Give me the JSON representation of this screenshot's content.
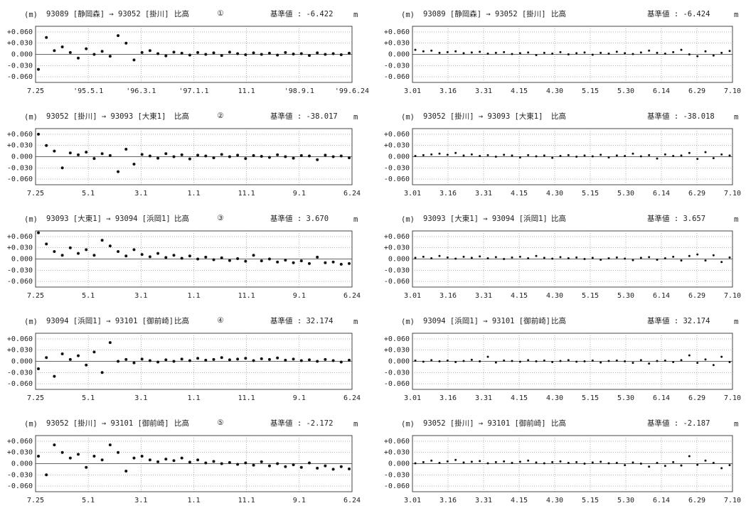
{
  "chart_data": [
    {
      "type": "scatter",
      "title": "93089 [静岡森] → 93052 [掛川]",
      "subtitle": "比高",
      "label": "①",
      "reference": "基準値 : -6.422",
      "y_unit": "(m)",
      "y_unit_right": "m",
      "grid": true,
      "color": "#111",
      "categories": [
        "7.25",
        "'95.5.1",
        "'96.3.1",
        "'97.1.1",
        "11.1",
        "'98.9.1",
        "'99.6.24"
      ],
      "ylim": [
        -0.075,
        0.075
      ],
      "yticks": [
        {
          "value": 0.06,
          "label": "+0.060"
        },
        {
          "value": 0.03,
          "label": "+0.030"
        },
        {
          "value": 0,
          "label": "0.000"
        },
        {
          "value": -0.03,
          "label": "-0.030"
        },
        {
          "value": -0.06,
          "label": "-0.060"
        }
      ],
      "values": [
        -0.04,
        0.045,
        0.01,
        0.02,
        0.005,
        -0.01,
        0.015,
        0.0,
        0.008,
        -0.005,
        0.05,
        0.03,
        -0.015,
        0.005,
        0.01,
        0.002,
        -0.004,
        0.006,
        0.003,
        -0.002,
        0.005,
        0.0,
        0.004,
        -0.003,
        0.006,
        0.002,
        -0.001,
        0.004,
        0.0,
        0.003,
        -0.002,
        0.005,
        0.001,
        0.002,
        -0.003,
        0.004,
        0.0,
        0.002,
        -0.001,
        0.003
      ]
    },
    {
      "type": "scatter",
      "title": "93089 [静岡森] → 93052 [掛川]",
      "subtitle": "比高",
      "reference": "基準値 : -6.424",
      "y_unit": "(m)",
      "y_unit_right": "m",
      "grid": true,
      "color": "#111",
      "categories": [
        "3.01",
        "3.16",
        "3.31",
        "4.15",
        "4.30",
        "5.15",
        "5.30",
        "6.14",
        "6.29",
        "7.10"
      ],
      "ylim": [
        -0.075,
        0.075
      ],
      "yticks": [
        {
          "value": 0.06,
          "label": "+0.060"
        },
        {
          "value": 0.03,
          "label": "+0.030"
        },
        {
          "value": 0,
          "label": "0.000"
        },
        {
          "value": -0.03,
          "label": "-0.030"
        },
        {
          "value": -0.06,
          "label": "-0.060"
        }
      ],
      "values": [
        0.012,
        0.008,
        0.01,
        0.004,
        0.006,
        0.008,
        0.003,
        0.005,
        0.007,
        0.002,
        0.004,
        0.006,
        0.001,
        0.003,
        0.005,
        -0.002,
        0.004,
        0.002,
        0.006,
        0.0,
        0.003,
        0.005,
        -0.001,
        0.004,
        0.002,
        0.007,
        0.003,
        0.001,
        0.005,
        0.01,
        0.004,
        0.002,
        0.006,
        0.012,
        0.0,
        -0.005,
        0.008,
        -0.003,
        0.004,
        0.009
      ]
    },
    {
      "type": "scatter",
      "title": "93052 [掛川] → 93093 [大東1]",
      "subtitle": "比高",
      "label": "②",
      "reference": "基準値 : -38.017",
      "y_unit": "(m)",
      "y_unit_right": "m",
      "grid": true,
      "color": "#111",
      "categories": [
        "7.25",
        "5.1",
        "3.1",
        "1.1",
        "11.1",
        "9.1",
        "6.24"
      ],
      "ylim": [
        -0.075,
        0.075
      ],
      "yticks": [
        {
          "value": 0.06,
          "label": "+0.060"
        },
        {
          "value": 0.03,
          "label": "+0.030"
        },
        {
          "value": 0,
          "label": "0.000"
        },
        {
          "value": -0.03,
          "label": "-0.030"
        },
        {
          "value": -0.06,
          "label": "-0.060"
        }
      ],
      "values": [
        0.06,
        0.03,
        0.015,
        -0.03,
        0.01,
        0.005,
        0.012,
        -0.005,
        0.008,
        0.003,
        -0.04,
        0.02,
        -0.02,
        0.006,
        0.002,
        -0.004,
        0.008,
        0.0,
        0.005,
        -0.006,
        0.004,
        0.002,
        -0.003,
        0.006,
        0.0,
        0.004,
        -0.005,
        0.003,
        0.001,
        -0.002,
        0.005,
        0.0,
        -0.004,
        0.003,
        0.002,
        -0.008,
        0.004,
        0.0,
        0.002,
        -0.003
      ]
    },
    {
      "type": "scatter",
      "title": "93052 [掛川] → 93093 [大東1]",
      "subtitle": "比高",
      "reference": "基準値 : -38.018",
      "y_unit": "(m)",
      "y_unit_right": "m",
      "grid": true,
      "color": "#111",
      "categories": [
        "3.01",
        "3.16",
        "3.31",
        "4.15",
        "4.30",
        "5.15",
        "5.30",
        "6.14",
        "6.29",
        "7.10"
      ],
      "ylim": [
        -0.075,
        0.075
      ],
      "yticks": [
        {
          "value": 0.06,
          "label": "+0.060"
        },
        {
          "value": 0.03,
          "label": "+0.030"
        },
        {
          "value": 0,
          "label": "0.000"
        },
        {
          "value": -0.03,
          "label": "-0.030"
        },
        {
          "value": -0.06,
          "label": "-0.060"
        }
      ],
      "values": [
        0.002,
        0.004,
        0.006,
        0.008,
        0.005,
        0.01,
        0.003,
        0.006,
        0.002,
        0.004,
        0.0,
        0.005,
        0.003,
        -0.002,
        0.004,
        0.001,
        0.003,
        -0.003,
        0.002,
        0.004,
        0.0,
        0.003,
        0.001,
        0.005,
        -0.002,
        0.003,
        0.002,
        0.008,
        0.001,
        0.004,
        -0.005,
        0.006,
        0.002,
        0.003,
        0.01,
        -0.006,
        0.012,
        -0.004,
        0.006,
        0.003
      ]
    },
    {
      "type": "scatter",
      "title": "93093 [大東1] → 93094 [浜岡1]",
      "subtitle": "比高",
      "label": "③",
      "reference": "基準値 : 3.670",
      "y_unit": "(m)",
      "y_unit_right": "m",
      "grid": true,
      "color": "#111",
      "categories": [
        "7.25",
        "5.1",
        "3.1",
        "1.1",
        "11.1",
        "9.1",
        "6.24"
      ],
      "ylim": [
        -0.075,
        0.075
      ],
      "yticks": [
        {
          "value": 0.06,
          "label": "+0.060"
        },
        {
          "value": 0.03,
          "label": "+0.030"
        },
        {
          "value": 0,
          "label": "0.000"
        },
        {
          "value": -0.03,
          "label": "-0.030"
        },
        {
          "value": -0.06,
          "label": "-0.060"
        }
      ],
      "values": [
        0.07,
        0.04,
        0.02,
        0.01,
        0.03,
        0.015,
        0.025,
        0.01,
        0.05,
        0.035,
        0.02,
        0.008,
        0.025,
        0.012,
        0.006,
        0.015,
        0.004,
        0.01,
        0.002,
        0.008,
        0.0,
        0.005,
        -0.002,
        0.003,
        -0.004,
        0.001,
        -0.006,
        0.01,
        -0.005,
        0.0,
        -0.008,
        -0.003,
        -0.01,
        -0.005,
        -0.012,
        0.005,
        -0.01,
        -0.008,
        -0.014,
        -0.012
      ]
    },
    {
      "type": "scatter",
      "title": "93093 [大東1] → 93094 [浜岡1]",
      "subtitle": "比高",
      "reference": "基準値 : 3.657",
      "y_unit": "(m)",
      "y_unit_right": "m",
      "grid": true,
      "color": "#111",
      "categories": [
        "3.01",
        "3.16",
        "3.31",
        "4.15",
        "4.30",
        "5.15",
        "5.30",
        "6.14",
        "6.29",
        "7.10"
      ],
      "ylim": [
        -0.075,
        0.075
      ],
      "yticks": [
        {
          "value": 0.06,
          "label": "+0.060"
        },
        {
          "value": 0.03,
          "label": "+0.030"
        },
        {
          "value": 0,
          "label": "0.000"
        },
        {
          "value": -0.03,
          "label": "-0.030"
        },
        {
          "value": -0.06,
          "label": "-0.060"
        }
      ],
      "values": [
        0.003,
        0.006,
        0.002,
        0.008,
        0.004,
        0.001,
        0.006,
        0.003,
        0.007,
        0.002,
        0.005,
        0.0,
        0.004,
        0.006,
        0.002,
        0.008,
        0.003,
        0.001,
        0.005,
        0.002,
        0.004,
        0.0,
        0.003,
        -0.002,
        0.002,
        0.004,
        0.001,
        -0.003,
        0.003,
        0.005,
        -0.002,
        0.002,
        0.006,
        -0.004,
        0.008,
        0.012,
        -0.004,
        0.01,
        -0.008,
        0.004
      ]
    },
    {
      "type": "scatter",
      "title": "93094 [浜岡1] → 93101 [御前崎]",
      "subtitle": "比高",
      "label": "④",
      "reference": "基準値 : 32.174",
      "y_unit": "(m)",
      "y_unit_right": "m",
      "grid": true,
      "color": "#111",
      "categories": [
        "7.25",
        "5.1",
        "3.1",
        "1.1",
        "11.1",
        "9.1",
        "6.24"
      ],
      "ylim": [
        -0.075,
        0.075
      ],
      "yticks": [
        {
          "value": 0.06,
          "label": "+0.060"
        },
        {
          "value": 0.03,
          "label": "+0.030"
        },
        {
          "value": 0,
          "label": "0.000"
        },
        {
          "value": -0.03,
          "label": "-0.030"
        },
        {
          "value": -0.06,
          "label": "-0.060"
        }
      ],
      "values": [
        -0.02,
        0.01,
        -0.04,
        0.02,
        0.005,
        0.015,
        -0.01,
        0.025,
        -0.03,
        0.05,
        0.0,
        0.005,
        -0.004,
        0.006,
        0.002,
        -0.002,
        0.004,
        0.0,
        0.006,
        0.002,
        0.008,
        0.003,
        0.005,
        0.01,
        0.004,
        0.006,
        0.008,
        0.002,
        0.007,
        0.005,
        0.009,
        0.003,
        0.006,
        0.002,
        0.004,
        0.0,
        0.005,
        0.002,
        -0.002,
        0.003
      ]
    },
    {
      "type": "scatter",
      "title": "93094 [浜岡1] → 93101 [御前崎]",
      "subtitle": "比高",
      "reference": "基準値 : 32.174",
      "y_unit": "(m)",
      "y_unit_right": "m",
      "grid": true,
      "color": "#111",
      "categories": [
        "3.01",
        "3.16",
        "3.31",
        "4.15",
        "4.30",
        "5.15",
        "5.30",
        "6.14",
        "6.29",
        "7.10"
      ],
      "ylim": [
        -0.075,
        0.075
      ],
      "yticks": [
        {
          "value": 0.06,
          "label": "+0.060"
        },
        {
          "value": 0.03,
          "label": "+0.030"
        },
        {
          "value": 0,
          "label": "0.000"
        },
        {
          "value": -0.03,
          "label": "-0.030"
        },
        {
          "value": -0.06,
          "label": "-0.060"
        }
      ],
      "values": [
        0.002,
        -0.001,
        0.003,
        0.0,
        0.002,
        -0.002,
        0.001,
        0.004,
        0.0,
        0.012,
        -0.003,
        0.002,
        0.001,
        -0.001,
        0.003,
        0.0,
        0.002,
        -0.002,
        0.001,
        0.003,
        -0.001,
        0.0,
        0.002,
        -0.003,
        0.001,
        0.002,
        0.0,
        -0.004,
        0.003,
        -0.006,
        0.001,
        0.002,
        -0.002,
        0.003,
        0.016,
        -0.004,
        0.005,
        -0.01,
        0.012,
        -0.002
      ]
    },
    {
      "type": "scatter",
      "title": "93052 [掛川] → 93101 [御前崎]",
      "subtitle": "比高",
      "label": "⑤",
      "reference": "基準値 : -2.172",
      "y_unit": "(m)",
      "y_unit_right": "m",
      "grid": true,
      "color": "#111",
      "categories": [
        "7.25",
        "5.1",
        "3.1",
        "1.1",
        "11.1",
        "9.1",
        "6.24"
      ],
      "ylim": [
        -0.075,
        0.075
      ],
      "yticks": [
        {
          "value": 0.06,
          "label": "+0.060"
        },
        {
          "value": 0.03,
          "label": "+0.030"
        },
        {
          "value": 0,
          "label": "0.000"
        },
        {
          "value": -0.03,
          "label": "-0.030"
        },
        {
          "value": -0.06,
          "label": "-0.060"
        }
      ],
      "values": [
        0.02,
        -0.03,
        0.05,
        0.03,
        0.015,
        0.025,
        -0.01,
        0.02,
        0.01,
        0.05,
        0.03,
        -0.02,
        0.015,
        0.02,
        0.01,
        0.005,
        0.012,
        0.008,
        0.015,
        0.004,
        0.01,
        0.002,
        0.006,
        0.0,
        0.003,
        -0.002,
        0.002,
        -0.004,
        0.005,
        -0.006,
        0.0,
        -0.008,
        -0.003,
        -0.01,
        0.002,
        -0.012,
        -0.006,
        -0.015,
        -0.008,
        -0.014
      ]
    },
    {
      "type": "scatter",
      "title": "93052 [掛川] → 93101 [御前崎]",
      "subtitle": "比高",
      "reference": "基準値 : -2.187",
      "y_unit": "(m)",
      "y_unit_right": "m",
      "grid": true,
      "color": "#111",
      "categories": [
        "3.01",
        "3.16",
        "3.31",
        "4.15",
        "4.30",
        "5.15",
        "5.30",
        "6.14",
        "6.29",
        "7.10"
      ],
      "ylim": [
        -0.075,
        0.075
      ],
      "yticks": [
        {
          "value": 0.06,
          "label": "+0.060"
        },
        {
          "value": 0.03,
          "label": "+0.030"
        },
        {
          "value": 0,
          "label": "0.000"
        },
        {
          "value": -0.03,
          "label": "-0.030"
        },
        {
          "value": -0.06,
          "label": "-0.060"
        }
      ],
      "values": [
        0.001,
        0.004,
        0.008,
        0.002,
        0.006,
        0.01,
        0.003,
        0.005,
        0.007,
        0.001,
        0.004,
        0.006,
        0.002,
        0.005,
        0.008,
        0.003,
        0.001,
        0.004,
        0.006,
        0.002,
        0.004,
        0.0,
        0.003,
        0.005,
        0.001,
        0.002,
        -0.004,
        0.003,
        0.0,
        -0.008,
        0.002,
        -0.006,
        0.004,
        -0.005,
        0.02,
        -0.003,
        0.008,
        0.002,
        -0.012,
        -0.004
      ]
    }
  ]
}
